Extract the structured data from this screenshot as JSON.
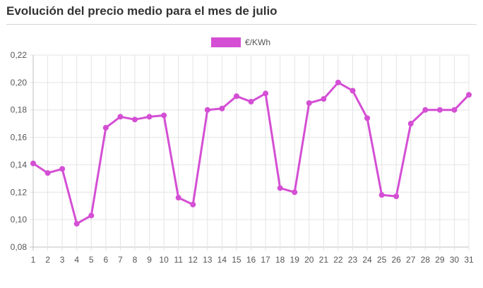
{
  "title": "Evolución del precio medio para el mes de julio",
  "colors": {
    "series": "#d44fd4",
    "grid": "#e4e4e4",
    "axis": "#bfbfbf"
  },
  "chart_data": {
    "type": "line",
    "title": "Evolución del precio medio para el mes de julio",
    "xlabel": "",
    "ylabel": "",
    "x": [
      1,
      2,
      3,
      4,
      5,
      6,
      7,
      8,
      9,
      10,
      11,
      12,
      13,
      14,
      15,
      16,
      17,
      18,
      19,
      20,
      21,
      22,
      23,
      24,
      25,
      26,
      27,
      28,
      29,
      30,
      31
    ],
    "series": [
      {
        "name": "€/KWh",
        "values": [
          0.141,
          0.134,
          0.137,
          0.097,
          0.103,
          0.167,
          0.175,
          0.173,
          0.175,
          0.176,
          0.116,
          0.111,
          0.18,
          0.181,
          0.19,
          0.186,
          0.192,
          0.123,
          0.12,
          0.185,
          0.188,
          0.2,
          0.194,
          0.174,
          0.118,
          0.117,
          0.17,
          0.18,
          0.18,
          0.18,
          0.191
        ]
      }
    ],
    "ylim": [
      0.08,
      0.22
    ],
    "yticks": [
      "0,08",
      "0,10",
      "0,12",
      "0,14",
      "0,16",
      "0,18",
      "0,20",
      "0,22"
    ],
    "xticks": [
      "1",
      "2",
      "3",
      "4",
      "5",
      "6",
      "7",
      "8",
      "9",
      "10",
      "11",
      "12",
      "13",
      "14",
      "15",
      "16",
      "17",
      "18",
      "19",
      "20",
      "21",
      "22",
      "23",
      "24",
      "25",
      "26",
      "27",
      "28",
      "29",
      "30",
      "31"
    ],
    "grid": true,
    "legend_position": "top-center"
  }
}
